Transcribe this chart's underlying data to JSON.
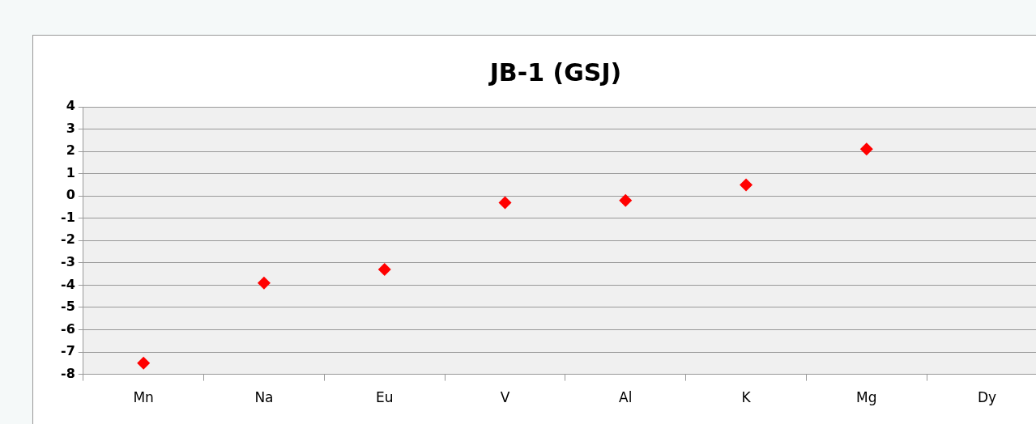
{
  "chart_data": {
    "type": "scatter",
    "title": "JB-1 (GSJ)",
    "categories": [
      "Mn",
      "Na",
      "Eu",
      "V",
      "Al",
      "K",
      "Mg",
      "Dy"
    ],
    "series": [
      {
        "color": "#ff0000",
        "values": [
          -7.5,
          -3.9,
          -3.3,
          -0.3,
          -0.2,
          0.5,
          2.1,
          null
        ]
      }
    ],
    "ylim": [
      -8,
      4
    ],
    "yticks": [
      -8,
      -7,
      -6,
      -5,
      -4,
      -3,
      -2,
      -1,
      0,
      1,
      2,
      3,
      4
    ],
    "grid": "y",
    "legend": false,
    "marker": "diamond"
  }
}
